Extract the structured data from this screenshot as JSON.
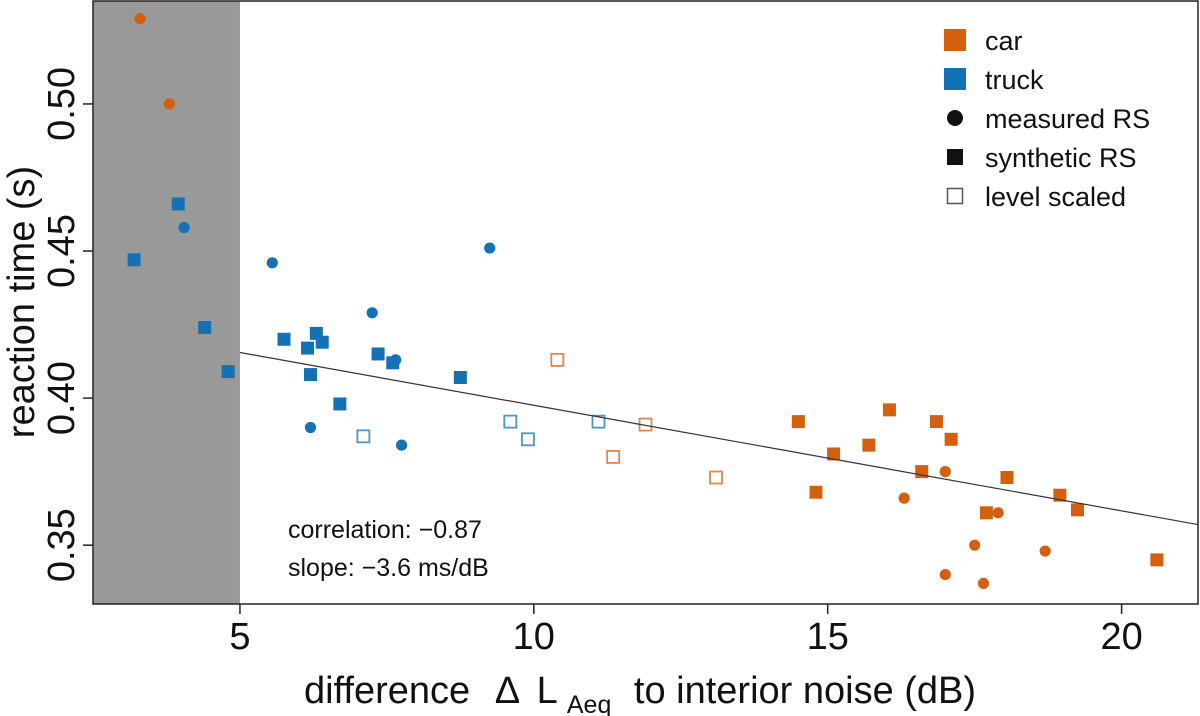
{
  "chart_data": {
    "type": "scatter",
    "title": "",
    "xlabel": {
      "prefix": "difference",
      "delta": "Δ",
      "symbol": "L",
      "subscript": "Aeq",
      "suffix": "to interior noise (dB)"
    },
    "ylabel": "reaction time (s)",
    "xlim": [
      2.5,
      21.3
    ],
    "ylim": [
      0.33,
      0.535
    ],
    "x_ticks": [
      {
        "value": 5,
        "label": "5"
      },
      {
        "value": 10,
        "label": "10"
      },
      {
        "value": 15,
        "label": "15"
      },
      {
        "value": 20,
        "label": "20"
      }
    ],
    "y_ticks": [
      {
        "value": 0.35,
        "label": "0.35"
      },
      {
        "value": 0.4,
        "label": "0.40"
      },
      {
        "value": 0.45,
        "label": "0.45"
      },
      {
        "value": 0.5,
        "label": "0.50"
      }
    ],
    "shaded_region": {
      "x_from": 2.5,
      "x_to": 5.0,
      "color": "#999999"
    },
    "regression_line": {
      "x_from": 5.0,
      "y_from": 0.4155,
      "x_to": 21.3,
      "y_to": 0.357
    },
    "colors": {
      "car": "#d35f0f",
      "truck": "#1371b4",
      "line": "#333333"
    },
    "legend": [
      {
        "label": "car",
        "kind": "swatch",
        "color": "#d35f0f"
      },
      {
        "label": "truck",
        "kind": "swatch",
        "color": "#1371b4"
      },
      {
        "label": "measured RS",
        "kind": "circle"
      },
      {
        "label": "synthetic RS",
        "kind": "square"
      },
      {
        "label": "level scaled",
        "kind": "open-square"
      }
    ],
    "annotations": {
      "correlation": "correlation: −0.87",
      "slope": "slope: −3.6 ms/dB"
    },
    "series": [
      {
        "name": "car measured RS",
        "vehicle": "car",
        "marker": "circle",
        "points": [
          [
            3.3,
            0.529
          ],
          [
            3.8,
            0.5
          ],
          [
            16.3,
            0.366
          ],
          [
            17.0,
            0.375
          ],
          [
            17.9,
            0.361
          ],
          [
            17.5,
            0.35
          ],
          [
            18.7,
            0.348
          ],
          [
            17.0,
            0.34
          ],
          [
            17.65,
            0.337
          ]
        ]
      },
      {
        "name": "car synthetic RS",
        "vehicle": "car",
        "marker": "square",
        "points": [
          [
            14.5,
            0.392
          ],
          [
            14.8,
            0.368
          ],
          [
            15.1,
            0.381
          ],
          [
            15.7,
            0.384
          ],
          [
            16.05,
            0.396
          ],
          [
            16.6,
            0.375
          ],
          [
            16.85,
            0.392
          ],
          [
            17.1,
            0.386
          ],
          [
            17.7,
            0.361
          ],
          [
            18.05,
            0.373
          ],
          [
            18.95,
            0.367
          ],
          [
            19.25,
            0.362
          ],
          [
            20.6,
            0.345
          ]
        ]
      },
      {
        "name": "car level scaled",
        "vehicle": "car",
        "marker": "open-square",
        "points": [
          [
            10.4,
            0.413
          ],
          [
            11.35,
            0.38
          ],
          [
            11.9,
            0.391
          ],
          [
            13.1,
            0.373
          ]
        ]
      },
      {
        "name": "truck measured RS",
        "vehicle": "truck",
        "marker": "circle",
        "points": [
          [
            4.05,
            0.458
          ],
          [
            5.55,
            0.446
          ],
          [
            9.25,
            0.451
          ],
          [
            7.25,
            0.429
          ],
          [
            7.65,
            0.413
          ],
          [
            6.2,
            0.39
          ],
          [
            7.75,
            0.384
          ]
        ]
      },
      {
        "name": "truck synthetic RS",
        "vehicle": "truck",
        "marker": "square",
        "points": [
          [
            3.2,
            0.447
          ],
          [
            3.95,
            0.466
          ],
          [
            4.4,
            0.424
          ],
          [
            4.8,
            0.409
          ],
          [
            5.75,
            0.42
          ],
          [
            6.15,
            0.417
          ],
          [
            6.2,
            0.408
          ],
          [
            6.3,
            0.422
          ],
          [
            6.4,
            0.419
          ],
          [
            6.7,
            0.398
          ],
          [
            7.35,
            0.415
          ],
          [
            7.6,
            0.412
          ],
          [
            8.75,
            0.407
          ]
        ]
      },
      {
        "name": "truck level scaled",
        "vehicle": "truck",
        "marker": "open-square",
        "points": [
          [
            7.1,
            0.387
          ],
          [
            9.6,
            0.392
          ],
          [
            9.9,
            0.386
          ],
          [
            11.1,
            0.392
          ]
        ]
      }
    ]
  }
}
